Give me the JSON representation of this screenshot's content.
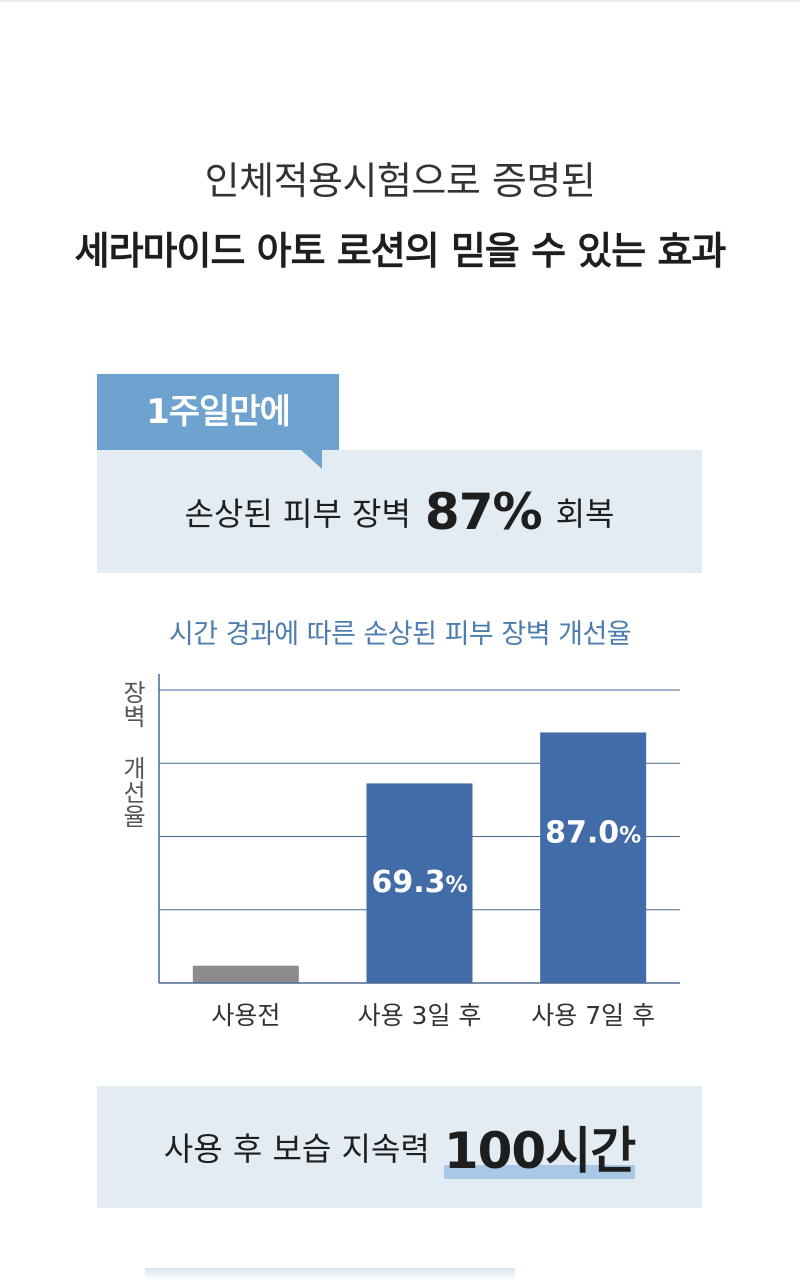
{
  "headline": {
    "line1": "인체적용시험으로 증명된",
    "line2": "세라마이드 아토 로션의 믿을 수 있는 효과"
  },
  "badge": {
    "tab_label": "1주일만에",
    "claim_prefix": "손상된 피부 장벽",
    "claim_value": "87%",
    "claim_suffix": "회복"
  },
  "chart_data": {
    "type": "bar",
    "title": "시간 경과에 따른 손상된 피부 장벽 개선율",
    "ylabel": "장벽 개선율",
    "xlabel": "",
    "categories": [
      "사용전",
      "사용 3일 후",
      "사용 7일 후"
    ],
    "values": [
      6,
      69.3,
      87.0
    ],
    "value_labels": [
      "",
      "69.3%",
      "87.0%"
    ],
    "ylim": [
      0,
      100
    ],
    "grid": true,
    "colors": [
      "#8c8c8c",
      "#426ca8",
      "#426ca8"
    ]
  },
  "claim2": {
    "prefix": "사용 후 보습 지속력",
    "value": "100시간"
  },
  "colors": {
    "accent_blue": "#426ca8",
    "tab_blue": "#6ea3cf",
    "panel_bg": "#e3ebf3",
    "title_blue": "#4d7db0"
  }
}
